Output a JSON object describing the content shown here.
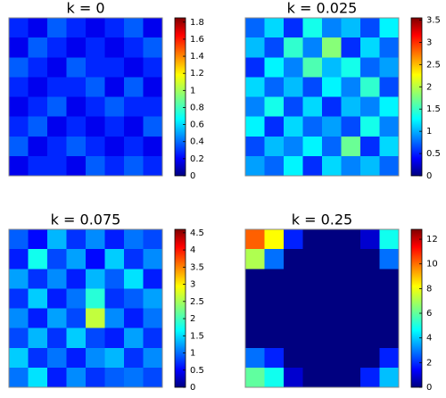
{
  "chart_data": [
    {
      "type": "heatmap",
      "title": "k = 0",
      "colormap": "jet",
      "zlim": [
        0,
        1.85
      ],
      "zticks": [
        0,
        0.2,
        0.4,
        0.6,
        0.8,
        1,
        1.2,
        1.4,
        1.6,
        1.8
      ],
      "z": [
        [
          0.3,
          0.2,
          0.4,
          0.3,
          0.2,
          0.3,
          0.4,
          0.2
        ],
        [
          0.2,
          0.4,
          0.3,
          0.2,
          0.3,
          0.2,
          0.3,
          0.4
        ],
        [
          0.4,
          0.3,
          0.2,
          0.4,
          0.3,
          0.3,
          0.2,
          0.3
        ],
        [
          0.3,
          0.2,
          0.3,
          0.3,
          0.4,
          0.2,
          0.4,
          0.2
        ],
        [
          0.2,
          0.3,
          0.4,
          0.2,
          0.3,
          0.4,
          0.3,
          0.3
        ],
        [
          0.3,
          0.4,
          0.2,
          0.3,
          0.2,
          0.3,
          0.2,
          0.4
        ],
        [
          0.4,
          0.2,
          0.3,
          0.4,
          0.3,
          0.2,
          0.3,
          0.2
        ],
        [
          0.2,
          0.3,
          0.3,
          0.2,
          0.4,
          0.3,
          0.4,
          0.3
        ]
      ]
    },
    {
      "type": "heatmap",
      "title": "k = 0.025",
      "colormap": "jet",
      "zlim": [
        0,
        3.55
      ],
      "zticks": [
        0,
        0.5,
        1,
        1.5,
        2,
        2.5,
        3,
        3.5
      ],
      "z": [
        [
          0.8,
          1.2,
          0.6,
          1.4,
          0.9,
          1.1,
          0.7,
          1.3
        ],
        [
          1.1,
          0.7,
          1.5,
          0.9,
          1.8,
          0.6,
          1.2,
          0.8
        ],
        [
          0.6,
          1.3,
          0.9,
          1.6,
          1.1,
          1.4,
          0.8,
          1
        ],
        [
          1.2,
          0.8,
          1.1,
          0.7,
          1.3,
          0.9,
          1.5,
          0.7
        ],
        [
          0.9,
          1.4,
          0.7,
          1.2,
          0.6,
          1.1,
          0.9,
          1.3
        ],
        [
          1.3,
          0.6,
          1.2,
          0.8,
          1,
          0.7,
          1.4,
          0.9
        ],
        [
          0.7,
          1.1,
          0.9,
          1.3,
          0.8,
          1.7,
          0.6,
          1.2
        ],
        [
          1,
          0.8,
          1.3,
          0.6,
          1.2,
          0.9,
          1.1,
          0.8
        ]
      ]
    },
    {
      "type": "heatmap",
      "title": "k = 0.075",
      "colormap": "jet",
      "zlim": [
        0,
        4.6
      ],
      "zticks": [
        0,
        0.5,
        1,
        1.5,
        2,
        2.5,
        3,
        3.5,
        4,
        4.5
      ],
      "z": [
        [
          1,
          0.6,
          1.4,
          0.8,
          1.2,
          0.7,
          1.1,
          0.9
        ],
        [
          0.7,
          1.8,
          0.9,
          1.3,
          0.6,
          1.5,
          0.8,
          1.2
        ],
        [
          1.3,
          0.8,
          1.2,
          0.7,
          1.4,
          1,
          1.6,
          0.7
        ],
        [
          0.8,
          1.5,
          0.7,
          1.1,
          1.9,
          0.8,
          1,
          1.3
        ],
        [
          1.2,
          0.7,
          1.3,
          0.9,
          2.6,
          1.2,
          0.7,
          1.1
        ],
        [
          0.9,
          1.4,
          0.8,
          1.5,
          0.9,
          0.7,
          1.3,
          0.8
        ],
        [
          1.5,
          0.8,
          1.1,
          0.7,
          1.2,
          1.4,
          0.8,
          1.2
        ],
        [
          1.1,
          1.6,
          0.7,
          1.2,
          0.8,
          1,
          1.1,
          0.9
        ]
      ]
    },
    {
      "type": "heatmap",
      "title": "k = 0.25",
      "colormap": "jet",
      "zlim": [
        0,
        12.8
      ],
      "zticks": [
        0,
        2,
        4,
        6,
        8,
        10,
        12
      ],
      "z": [
        [
          10,
          8,
          2,
          0,
          0,
          0,
          1,
          5
        ],
        [
          7,
          3,
          0,
          0,
          0,
          0,
          0,
          3
        ],
        [
          0,
          0,
          0,
          0,
          0,
          0,
          0,
          0
        ],
        [
          0,
          0,
          0,
          0,
          0,
          0,
          0,
          0
        ],
        [
          0,
          0,
          0,
          0,
          0,
          0,
          0,
          0
        ],
        [
          0,
          0,
          0,
          0,
          0,
          0,
          0,
          0
        ],
        [
          3,
          2,
          0,
          0,
          0,
          0,
          0,
          2
        ],
        [
          6,
          5,
          1,
          0,
          0,
          0,
          2,
          4
        ]
      ]
    }
  ]
}
